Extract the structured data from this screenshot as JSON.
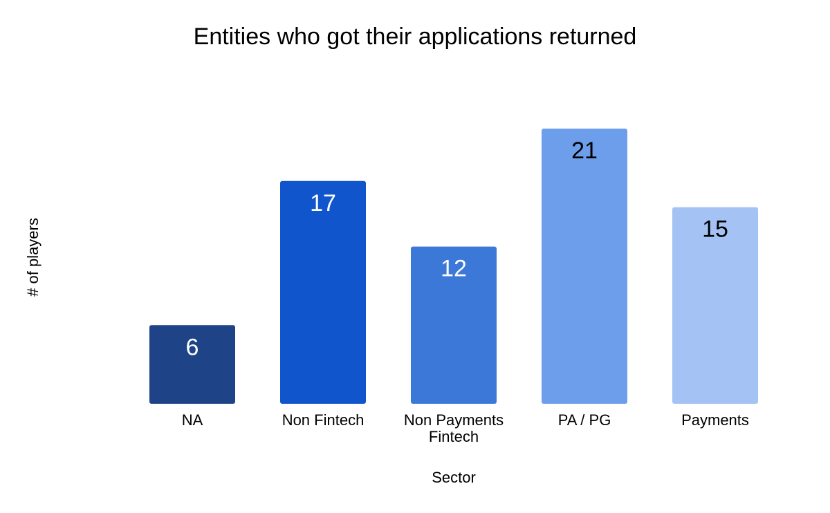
{
  "chart_data": {
    "type": "bar",
    "title": "Entities who got their applications returned",
    "xlabel": "Sector",
    "ylabel": "# of players",
    "categories": [
      "NA",
      "Non Fintech",
      "Non Payments Fintech",
      "PA / PG",
      "Payments"
    ],
    "category_label_lines": [
      [
        "NA"
      ],
      [
        "Non Fintech"
      ],
      [
        "Non Payments",
        "Fintech"
      ],
      [
        "PA / PG"
      ],
      [
        "Payments"
      ]
    ],
    "values": [
      6,
      17,
      12,
      21,
      15
    ],
    "data_labels": [
      "6",
      "17",
      "12",
      "21",
      "15"
    ],
    "colors": [
      "#1e4487",
      "#1155cc",
      "#3c78d8",
      "#6d9eeb",
      "#a4c2f4"
    ],
    "label_colors": [
      "#ffffff",
      "#ffffff",
      "#ffffff",
      "#000000",
      "#000000"
    ],
    "ylim": [
      0,
      21
    ],
    "grid": false,
    "legend": "none"
  }
}
